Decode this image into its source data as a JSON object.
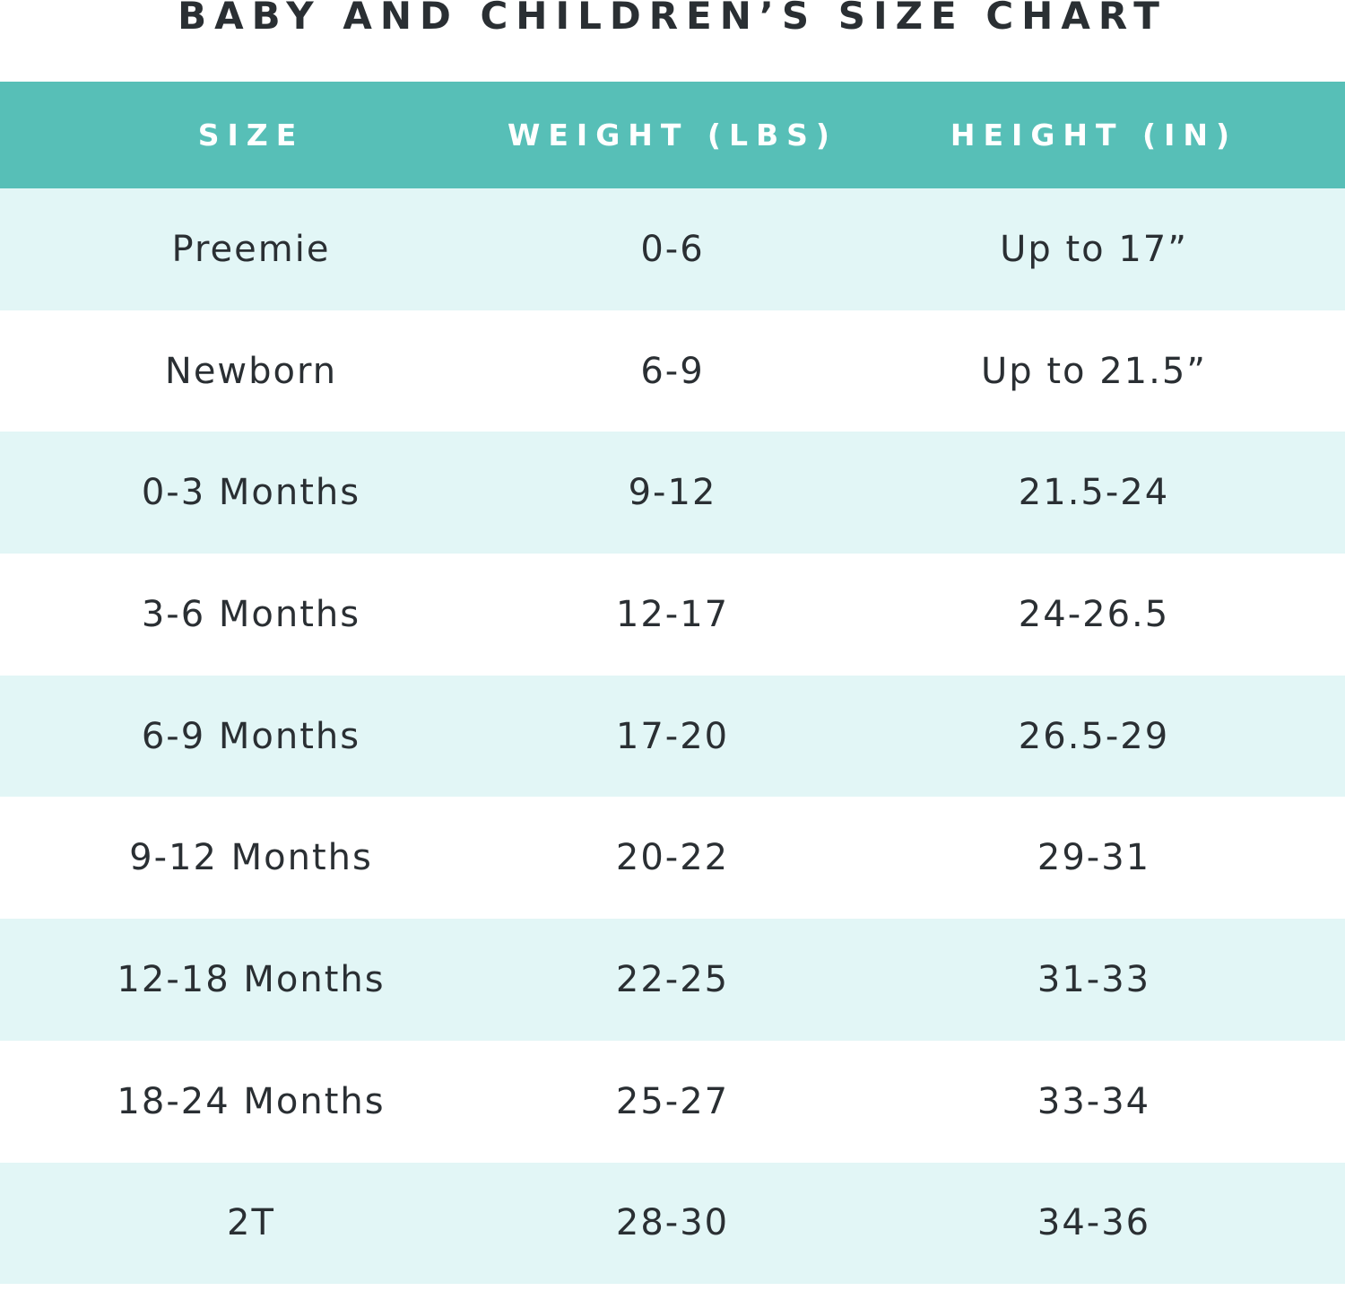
{
  "title": "BABY AND CHILDREN’S SIZE CHART",
  "colors": {
    "header_bg": "#57bfb7",
    "shaded_row_bg": "#e2f6f6",
    "plain_row_bg": "#ffffff",
    "text": "#2a2f33"
  },
  "table": {
    "headers": [
      "SIZE",
      "WEIGHT (LBS)",
      "HEIGHT (IN)"
    ],
    "rows": [
      [
        "Preemie",
        "0-6",
        "Up to 17”"
      ],
      [
        "Newborn",
        "6-9",
        "Up to 21.5”"
      ],
      [
        "0-3 Months",
        "9-12",
        "21.5-24"
      ],
      [
        "3-6 Months",
        "12-17",
        "24-26.5"
      ],
      [
        "6-9 Months",
        "17-20",
        "26.5-29"
      ],
      [
        "9-12 Months",
        "20-22",
        "29-31"
      ],
      [
        "12-18 Months",
        "22-25",
        "31-33"
      ],
      [
        "18-24 Months",
        "25-27",
        "33-34"
      ],
      [
        "2T",
        "28-30",
        "34-36"
      ]
    ]
  }
}
